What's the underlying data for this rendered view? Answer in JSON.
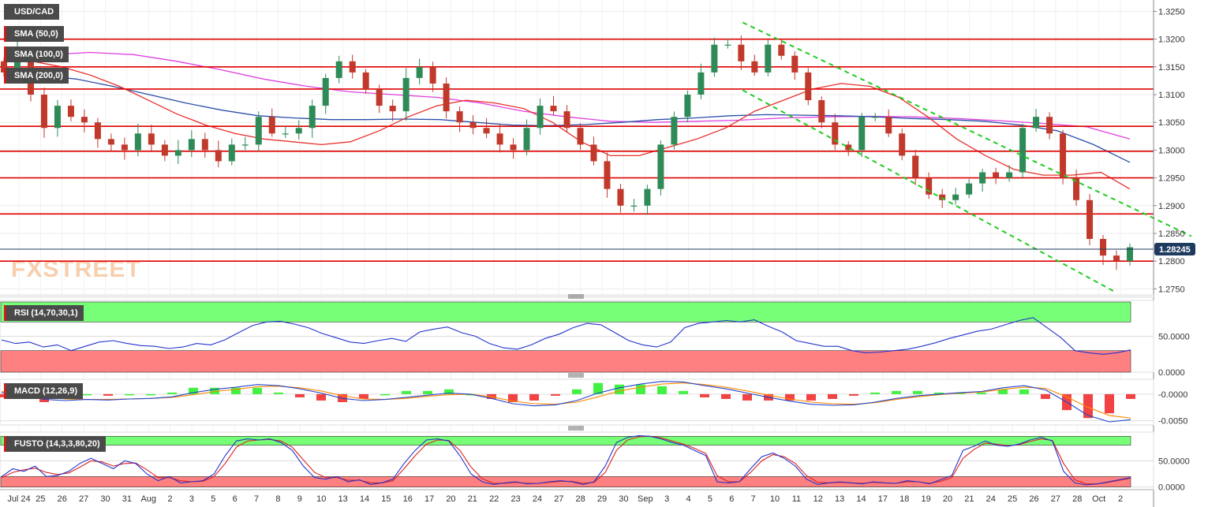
{
  "watermark": "FXSTREET",
  "instrument_label": "USD/CAD",
  "indicator_labels": {
    "sma50": "SMA (50,0)",
    "sma100": "SMA (100,0)",
    "sma200": "SMA (200,0)",
    "rsi": "RSI (14,70,30,1)",
    "macd": "MACD (12,26,9)",
    "fusto": "FUSTO (14,3,3,80,20)"
  },
  "colors": {
    "bull_candle": "#2e8b57",
    "bear_candle": "#c0392b",
    "sma50": "#e8302c",
    "sma100": "#2a4fa8",
    "sma200": "#e040e0",
    "horizontal_levels": "#e00000",
    "channel": "#22cc22",
    "current_price_badge": "#1f3a5f",
    "overbought_zone": "#77ff77",
    "oversold_zone": "#ff8080",
    "macd_line": "#2244cc",
    "signal_line": "#ff8800",
    "histogram_positive": "#22ee22",
    "histogram_negative": "#ee2222"
  },
  "chart_data": [
    {
      "type": "candlestick",
      "title": "USD/CAD",
      "x_tick_labels": [
        "Jul 24",
        "25",
        "26",
        "27",
        "30",
        "31",
        "Aug",
        "2",
        "3",
        "5",
        "6",
        "7",
        "8",
        "9",
        "10",
        "13",
        "14",
        "15",
        "16",
        "17",
        "20",
        "21",
        "22",
        "23",
        "24",
        "27",
        "28",
        "29",
        "30",
        "Sep",
        "3",
        "4",
        "5",
        "6",
        "7",
        "10",
        "11",
        "12",
        "13",
        "14",
        "17",
        "18",
        "19",
        "20",
        "21",
        "24",
        "25",
        "26",
        "27",
        "28",
        "Oct",
        "2"
      ],
      "y_tick_labels": [
        "1.3250",
        "1.3200",
        "1.3150",
        "1.3100",
        "1.3050",
        "1.3000",
        "1.2950",
        "1.2900",
        "1.2850",
        "1.2800",
        "1.2750"
      ],
      "ylim": [
        1.2742,
        1.3262
      ],
      "current_price": "1.28245",
      "horizontal_levels": [
        1.32,
        1.315,
        1.311,
        1.3043,
        1.2998,
        1.295,
        1.2885,
        1.28
      ],
      "channel_lines": [
        {
          "from": [
            "Sep 5",
            1.323
          ],
          "to": [
            "Oct 2+",
            1.2845
          ]
        },
        {
          "from": [
            "Sep 5",
            1.3108
          ],
          "to": [
            "Oct 1",
            1.2745
          ]
        }
      ],
      "close_series": [
        1.314,
        1.318,
        1.31,
        1.304,
        1.308,
        1.306,
        1.305,
        1.302,
        1.301,
        1.3,
        1.303,
        1.301,
        1.299,
        1.3,
        1.302,
        1.3,
        1.298,
        1.301,
        1.301,
        1.306,
        1.303,
        1.303,
        1.304,
        1.308,
        1.313,
        1.316,
        1.314,
        1.311,
        1.308,
        1.307,
        1.313,
        1.315,
        1.312,
        1.307,
        1.305,
        1.304,
        1.303,
        1.301,
        1.3,
        1.304,
        1.308,
        1.307,
        1.304,
        1.301,
        1.298,
        1.293,
        1.29,
        1.29,
        1.293,
        1.301,
        1.306,
        1.31,
        1.314,
        1.319,
        1.319,
        1.316,
        1.314,
        1.319,
        1.317,
        1.314,
        1.309,
        1.305,
        1.301,
        1.3,
        1.306,
        1.306,
        1.303,
        1.299,
        1.295,
        1.292,
        1.291,
        1.292,
        1.294,
        1.296,
        1.295,
        1.296,
        1.304,
        1.306,
        1.303,
        1.295,
        1.291,
        1.284,
        1.281,
        1.28,
        1.2825
      ],
      "sma50_series": [
        1.317,
        1.316,
        1.315,
        1.3135,
        1.3115,
        1.309,
        1.3065,
        1.3045,
        1.303,
        1.302,
        1.3015,
        1.301,
        1.3015,
        1.3035,
        1.306,
        1.308,
        1.309,
        1.3085,
        1.3075,
        1.305,
        1.3015,
        1.299,
        1.299,
        1.3005,
        1.302,
        1.304,
        1.307,
        1.309,
        1.311,
        1.312,
        1.3115,
        1.3095,
        1.306,
        1.302,
        1.299,
        1.2965,
        1.2955,
        1.2955,
        1.296,
        1.293
      ],
      "sma100_series": [
        1.314,
        1.3135,
        1.3128,
        1.3115,
        1.31,
        1.3085,
        1.3072,
        1.3062,
        1.3058,
        1.3055,
        1.3055,
        1.3056,
        1.3055,
        1.305,
        1.3045,
        1.3044,
        1.3046,
        1.305,
        1.3055,
        1.3058,
        1.3062,
        1.3064,
        1.3063,
        1.3062,
        1.306,
        1.3057,
        1.3055,
        1.3052,
        1.3045,
        1.3035,
        1.301,
        1.2978
      ],
      "sma200_series": [
        1.3165,
        1.3172,
        1.3176,
        1.3172,
        1.316,
        1.3145,
        1.3128,
        1.3115,
        1.3105,
        1.31,
        1.3095,
        1.3085,
        1.307,
        1.306,
        1.3052,
        1.305,
        1.3052,
        1.3054,
        1.3058,
        1.306,
        1.3061,
        1.306,
        1.3057,
        1.3053,
        1.3048,
        1.3042,
        1.302
      ]
    },
    {
      "type": "line",
      "title": "RSI (14,70,30,1)",
      "ylim": [
        0,
        100
      ],
      "y_tick_labels": [
        "50.0000",
        "0.0000"
      ],
      "levels": [
        70,
        30
      ],
      "series": [
        {
          "values": [
            45,
            40,
            42,
            35,
            38,
            30,
            36,
            42,
            44,
            40,
            37,
            36,
            33,
            35,
            40,
            38,
            45,
            55,
            65,
            70,
            71,
            67,
            62,
            54,
            48,
            42,
            40,
            44,
            47,
            43,
            56,
            60,
            63,
            55,
            50,
            40,
            34,
            32,
            38,
            47,
            53,
            62,
            68,
            66,
            55,
            44,
            38,
            35,
            42,
            62,
            68,
            70,
            72,
            70,
            73,
            64,
            56,
            44,
            40,
            36,
            36,
            30,
            27,
            28,
            30,
            32,
            36,
            41,
            47,
            52,
            57,
            60,
            66,
            72,
            76,
            62,
            48,
            30,
            27,
            25,
            27,
            31
          ]
        }
      ]
    },
    {
      "type": "line",
      "title": "MACD (12,26,9)",
      "y_tick_labels": [
        "-0.0000",
        "-0.0050"
      ],
      "ylim": [
        -0.0058,
        0.0028
      ],
      "series": [
        {
          "name": "MACD",
          "values": [
            0.0003,
            0.0,
            -0.001,
            -0.0012,
            -0.001,
            -0.0011,
            -0.0009,
            -0.0008,
            -0.0005,
            0.0003,
            0.0009,
            0.0013,
            0.0018,
            0.0016,
            0.001,
            0.0002,
            -0.0008,
            -0.0012,
            -0.001,
            -0.0006,
            -0.0002,
            0.0002,
            0.0,
            -0.0008,
            -0.0018,
            -0.0022,
            -0.002,
            -0.0012,
            0.0002,
            0.0012,
            0.0019,
            0.0024,
            0.0023,
            0.0016,
            0.001,
            0.0002,
            -0.0006,
            -0.0013,
            -0.0019,
            -0.0021,
            -0.002,
            -0.0015,
            -0.0008,
            -0.0003,
            0.0,
            0.0003,
            0.0005,
            0.0012,
            0.0016,
            0.0008,
            -0.0015,
            -0.004,
            -0.0052,
            -0.0048
          ]
        },
        {
          "name": "Signal",
          "values": [
            0.0005,
            0.0002,
            -0.0005,
            -0.0009,
            -0.001,
            -0.001,
            -0.0009,
            -0.0008,
            -0.0006,
            -0.0001,
            0.0005,
            0.0009,
            0.0014,
            0.0015,
            0.0012,
            0.0006,
            -0.0003,
            -0.0009,
            -0.001,
            -0.0008,
            -0.0004,
            -0.0001,
            0.0,
            -0.0005,
            -0.0013,
            -0.0018,
            -0.0019,
            -0.0015,
            -0.0005,
            0.0006,
            0.0013,
            0.0019,
            0.0021,
            0.0018,
            0.0013,
            0.0006,
            -0.0002,
            -0.0009,
            -0.0015,
            -0.0018,
            -0.0019,
            -0.0016,
            -0.001,
            -0.0005,
            -0.0001,
            0.0002,
            0.0004,
            0.0009,
            0.0013,
            0.0011,
            -0.0005,
            -0.0025,
            -0.004,
            -0.0045
          ]
        }
      ]
    },
    {
      "type": "line",
      "title": "FUSTO (14,3,3,80,20)",
      "ylim": [
        -5,
        105
      ],
      "y_tick_labels": [
        "50.0000",
        "0.0000"
      ],
      "levels": [
        80,
        20
      ],
      "series": [
        {
          "values": [
            20,
            35,
            30,
            40,
            20,
            22,
            30,
            45,
            55,
            45,
            35,
            50,
            45,
            25,
            12,
            20,
            8,
            10,
            12,
            25,
            60,
            88,
            92,
            90,
            92,
            85,
            70,
            40,
            18,
            15,
            20,
            10,
            14,
            5,
            8,
            15,
            45,
            70,
            90,
            92,
            88,
            60,
            25,
            10,
            5,
            8,
            10,
            6,
            7,
            10,
            12,
            10,
            5,
            10,
            40,
            85,
            95,
            98,
            97,
            92,
            85,
            80,
            70,
            60,
            10,
            8,
            10,
            35,
            58,
            65,
            55,
            40,
            15,
            5,
            8,
            10,
            8,
            6,
            10,
            8,
            7,
            12,
            10,
            6,
            14,
            22,
            70,
            78,
            88,
            80,
            78,
            82,
            90,
            95,
            88,
            30,
            8,
            4,
            6,
            10,
            14,
            18
          ]
        },
        {
          "values": [
            18,
            28,
            33,
            36,
            28,
            24,
            27,
            38,
            50,
            48,
            40,
            45,
            46,
            33,
            18,
            18,
            12,
            10,
            11,
            20,
            45,
            76,
            88,
            90,
            91,
            88,
            76,
            52,
            28,
            18,
            18,
            13,
            13,
            8,
            8,
            12,
            35,
            60,
            82,
            90,
            89,
            70,
            38,
            16,
            7,
            7,
            9,
            7,
            7,
            9,
            11,
            11,
            7,
            9,
            28,
            70,
            90,
            96,
            97,
            94,
            88,
            82,
            74,
            64,
            22,
            10,
            10,
            28,
            50,
            62,
            58,
            45,
            22,
            9,
            8,
            9,
            8,
            7,
            9,
            8,
            7,
            10,
            10,
            7,
            11,
            18,
            55,
            72,
            84,
            82,
            79,
            81,
            87,
            92,
            89,
            45,
            14,
            6,
            6,
            9,
            13,
            17
          ]
        }
      ]
    }
  ]
}
